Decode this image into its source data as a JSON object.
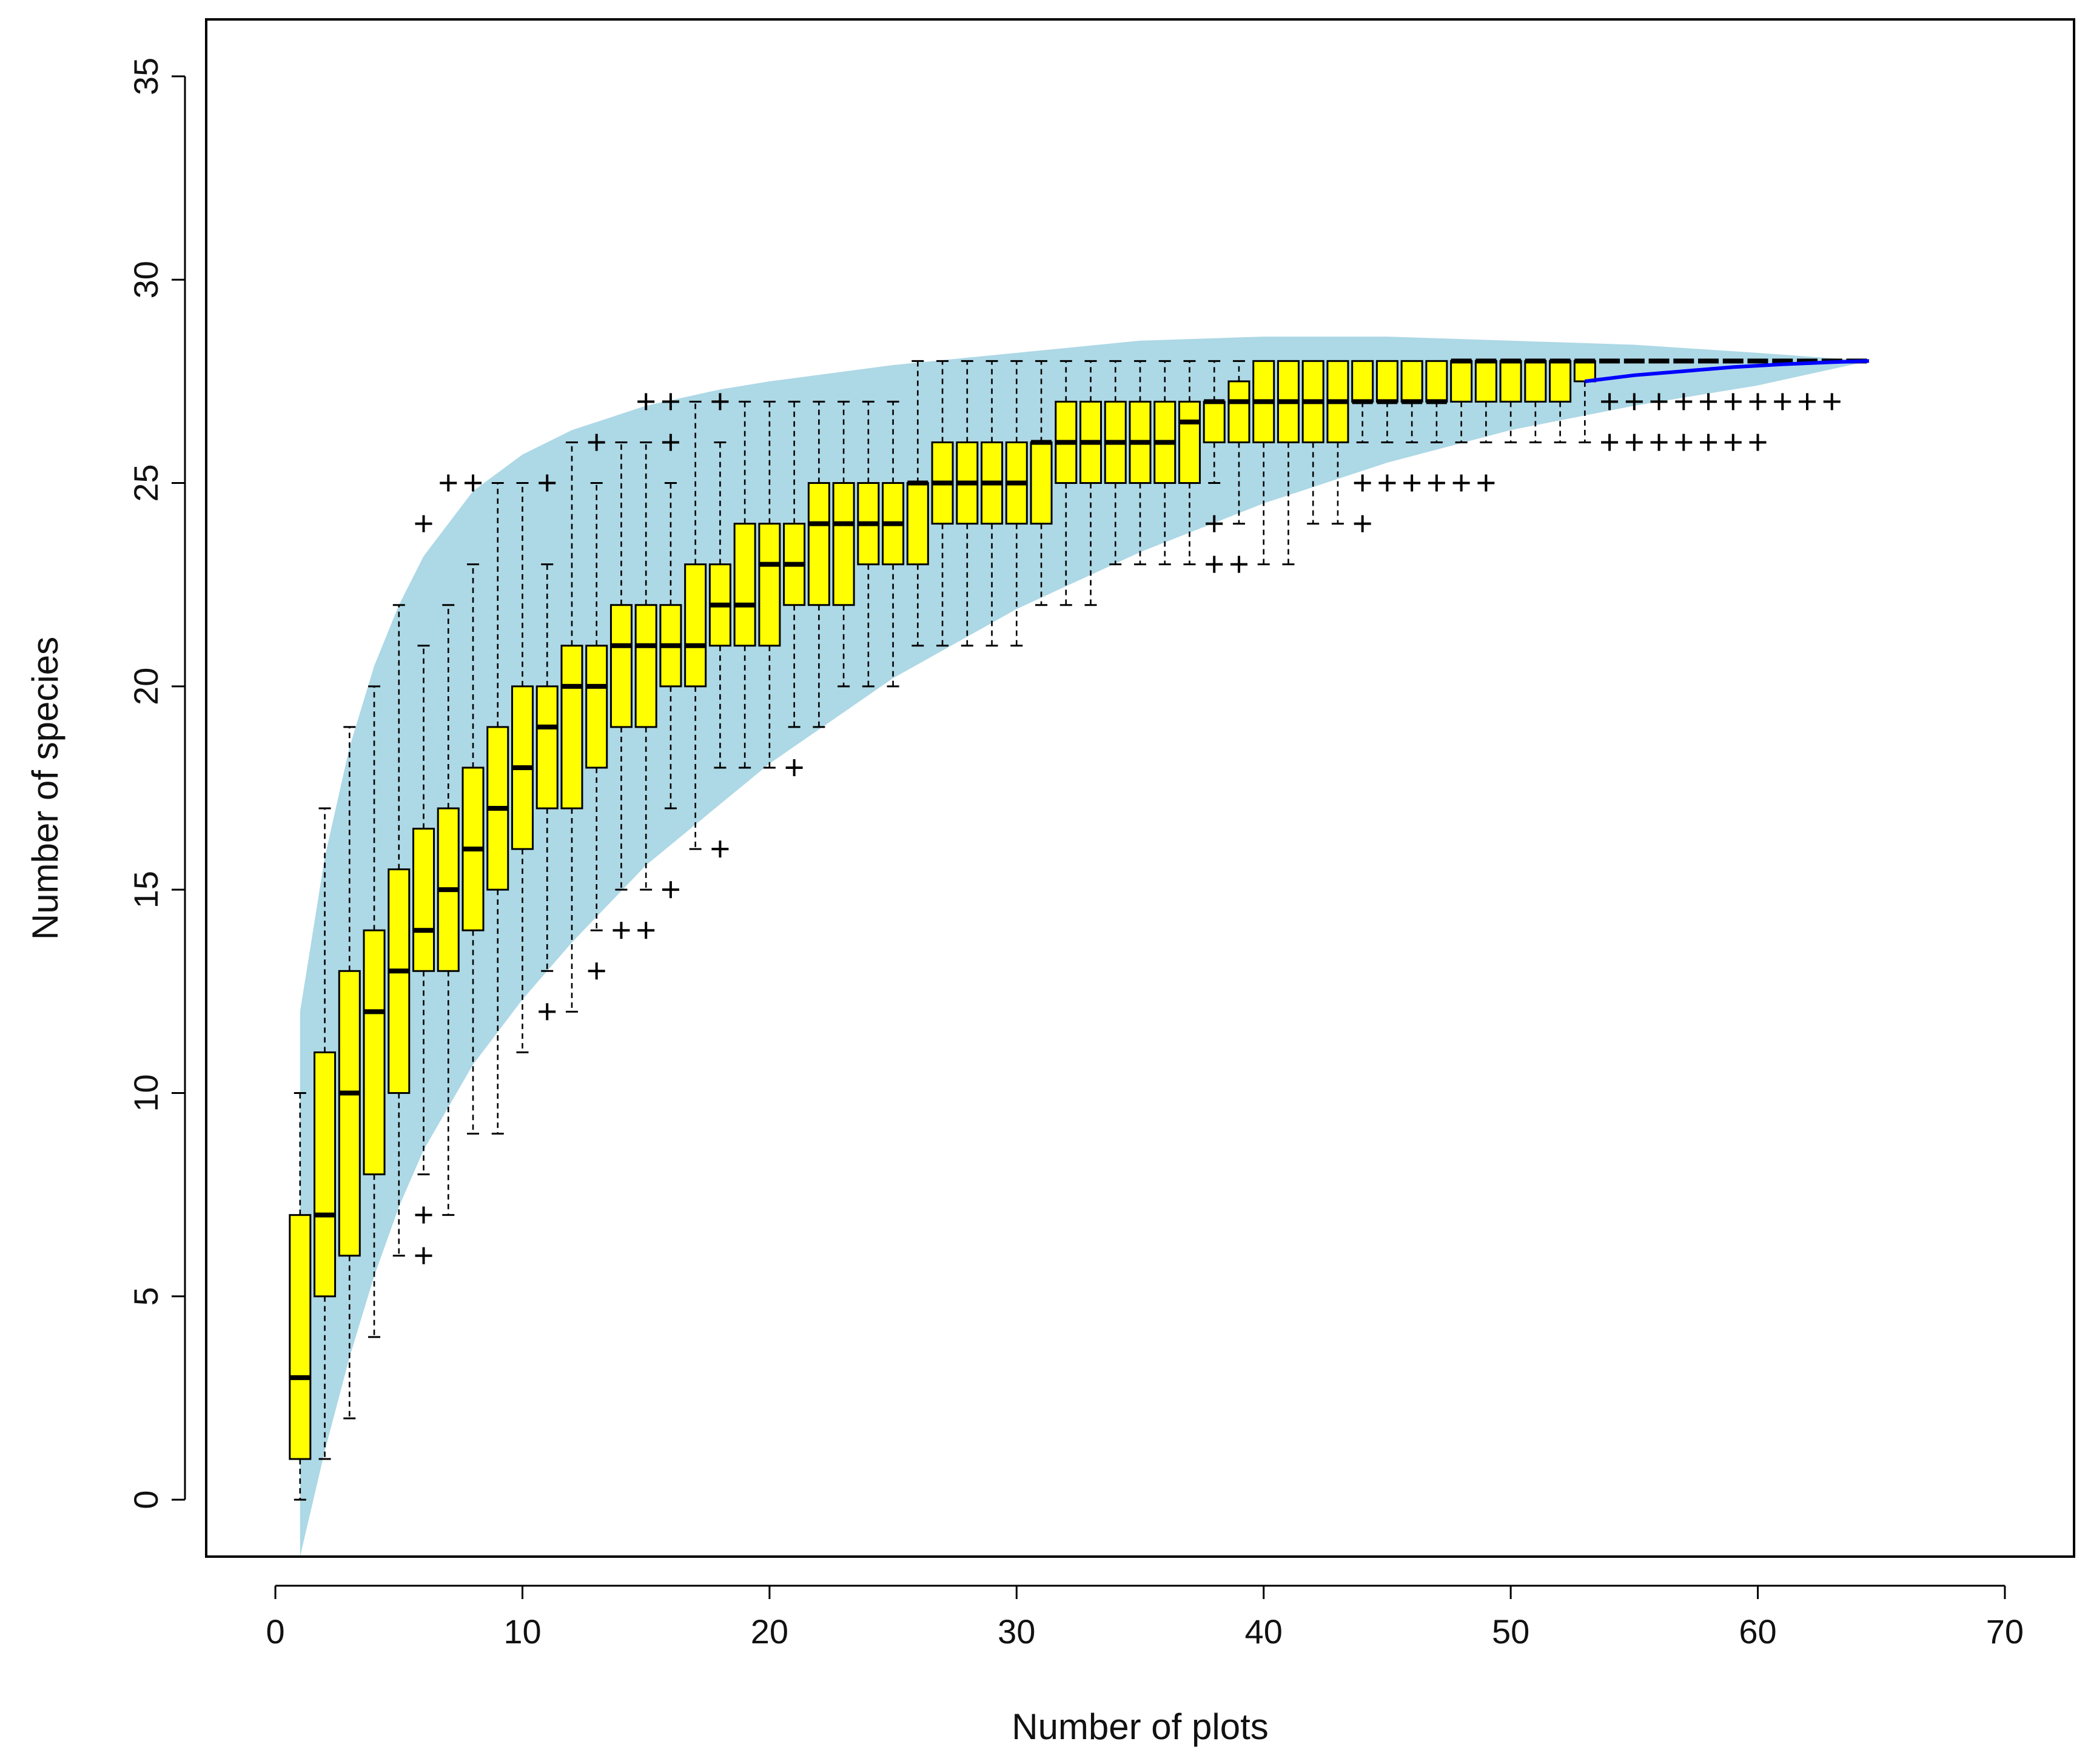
{
  "chart_data": {
    "type": "box",
    "xlabel": "Number of plots",
    "ylabel": "Number of species",
    "xlim": [
      -2.8,
      72.8
    ],
    "ylim": [
      -1.4,
      36.4
    ],
    "x_ticks": [
      0,
      10,
      20,
      30,
      40,
      50,
      60,
      70
    ],
    "y_ticks": [
      0,
      5,
      10,
      15,
      20,
      25,
      30,
      35
    ],
    "grid": false,
    "colors": {
      "box_fill": "#ffff00",
      "envelope": "#add8e6",
      "mean_line": "#0000ff",
      "ink": "#000000"
    },
    "envelope": {
      "x": [
        1,
        2,
        3,
        4,
        5,
        6,
        8,
        10,
        12,
        15,
        18,
        20,
        25,
        30,
        35,
        40,
        45,
        50,
        55,
        60,
        64.5
      ],
      "upper": [
        12,
        15.8,
        18.5,
        20.5,
        22,
        23.2,
        24.8,
        25.7,
        26.3,
        26.9,
        27.3,
        27.5,
        27.9,
        28.2,
        28.5,
        28.6,
        28.6,
        28.5,
        28.4,
        28.2,
        28
      ],
      "lower": [
        -1.4,
        1.2,
        3.5,
        5.5,
        7.2,
        8.6,
        10.7,
        12.3,
        13.7,
        15.6,
        17.1,
        18.1,
        20.2,
        21.9,
        23.3,
        24.5,
        25.5,
        26.3,
        26.9,
        27.4,
        28
      ]
    },
    "mean_curve": {
      "x": [
        53,
        55,
        57,
        59,
        61,
        63,
        64.5
      ],
      "y": [
        27.5,
        27.65,
        27.75,
        27.85,
        27.92,
        27.97,
        28
      ]
    },
    "boxes": [
      {
        "x": 1,
        "whisker_low": 0,
        "q1": 1,
        "median": 3,
        "q3": 7,
        "whisker_high": 10,
        "outliers": []
      },
      {
        "x": 2,
        "whisker_low": 1,
        "q1": 5,
        "median": 7,
        "q3": 11,
        "whisker_high": 17,
        "outliers": []
      },
      {
        "x": 3,
        "whisker_low": 2,
        "q1": 6,
        "median": 10,
        "q3": 13,
        "whisker_high": 19,
        "outliers": []
      },
      {
        "x": 4,
        "whisker_low": 4,
        "q1": 8,
        "median": 12,
        "q3": 14,
        "whisker_high": 20,
        "outliers": []
      },
      {
        "x": 5,
        "whisker_low": 6,
        "q1": 10,
        "median": 13,
        "q3": 15.5,
        "whisker_high": 22,
        "outliers": []
      },
      {
        "x": 6,
        "whisker_low": 8,
        "q1": 13,
        "median": 14,
        "q3": 16.5,
        "whisker_high": 21,
        "outliers": [
          24,
          7,
          6
        ]
      },
      {
        "x": 7,
        "whisker_low": 7,
        "q1": 13,
        "median": 15,
        "q3": 17,
        "whisker_high": 22,
        "outliers": [
          25
        ]
      },
      {
        "x": 8,
        "whisker_low": 9,
        "q1": 14,
        "median": 16,
        "q3": 18,
        "whisker_high": 23,
        "outliers": [
          25
        ]
      },
      {
        "x": 9,
        "whisker_low": 9,
        "q1": 15,
        "median": 17,
        "q3": 19,
        "whisker_high": 25,
        "outliers": []
      },
      {
        "x": 10,
        "whisker_low": 11,
        "q1": 16,
        "median": 18,
        "q3": 20,
        "whisker_high": 25,
        "outliers": []
      },
      {
        "x": 11,
        "whisker_low": 13,
        "q1": 17,
        "median": 19,
        "q3": 20,
        "whisker_high": 23,
        "outliers": [
          25,
          12
        ]
      },
      {
        "x": 12,
        "whisker_low": 12,
        "q1": 17,
        "median": 20,
        "q3": 21,
        "whisker_high": 26,
        "outliers": []
      },
      {
        "x": 13,
        "whisker_low": 14,
        "q1": 18,
        "median": 20,
        "q3": 21,
        "whisker_high": 25,
        "outliers": [
          26,
          13
        ]
      },
      {
        "x": 14,
        "whisker_low": 15,
        "q1": 19,
        "median": 21,
        "q3": 22,
        "whisker_high": 26,
        "outliers": [
          14
        ]
      },
      {
        "x": 15,
        "whisker_low": 15,
        "q1": 19,
        "median": 21,
        "q3": 22,
        "whisker_high": 26,
        "outliers": [
          27,
          14
        ]
      },
      {
        "x": 16,
        "whisker_low": 17,
        "q1": 20,
        "median": 21,
        "q3": 22,
        "whisker_high": 25,
        "outliers": [
          27,
          26,
          15
        ]
      },
      {
        "x": 17,
        "whisker_low": 16,
        "q1": 20,
        "median": 21,
        "q3": 23,
        "whisker_high": 27,
        "outliers": []
      },
      {
        "x": 18,
        "whisker_low": 18,
        "q1": 21,
        "median": 22,
        "q3": 23,
        "whisker_high": 26,
        "outliers": [
          27,
          16
        ]
      },
      {
        "x": 19,
        "whisker_low": 18,
        "q1": 21,
        "median": 22,
        "q3": 24,
        "whisker_high": 27,
        "outliers": []
      },
      {
        "x": 20,
        "whisker_low": 18,
        "q1": 21,
        "median": 23,
        "q3": 24,
        "whisker_high": 27,
        "outliers": []
      },
      {
        "x": 21,
        "whisker_low": 19,
        "q1": 22,
        "median": 23,
        "q3": 24,
        "whisker_high": 27,
        "outliers": [
          18
        ]
      },
      {
        "x": 22,
        "whisker_low": 19,
        "q1": 22,
        "median": 24,
        "q3": 25,
        "whisker_high": 27,
        "outliers": []
      },
      {
        "x": 23,
        "whisker_low": 20,
        "q1": 22,
        "median": 24,
        "q3": 25,
        "whisker_high": 27,
        "outliers": []
      },
      {
        "x": 24,
        "whisker_low": 20,
        "q1": 23,
        "median": 24,
        "q3": 25,
        "whisker_high": 27,
        "outliers": []
      },
      {
        "x": 25,
        "whisker_low": 20,
        "q1": 23,
        "median": 24,
        "q3": 25,
        "whisker_high": 27,
        "outliers": []
      },
      {
        "x": 26,
        "whisker_low": 21,
        "q1": 23,
        "median": 25,
        "q3": 25,
        "whisker_high": 28,
        "outliers": []
      },
      {
        "x": 27,
        "whisker_low": 21,
        "q1": 24,
        "median": 25,
        "q3": 26,
        "whisker_high": 28,
        "outliers": []
      },
      {
        "x": 28,
        "whisker_low": 21,
        "q1": 24,
        "median": 25,
        "q3": 26,
        "whisker_high": 28,
        "outliers": []
      },
      {
        "x": 29,
        "whisker_low": 21,
        "q1": 24,
        "median": 25,
        "q3": 26,
        "whisker_high": 28,
        "outliers": []
      },
      {
        "x": 30,
        "whisker_low": 21,
        "q1": 24,
        "median": 25,
        "q3": 26,
        "whisker_high": 28,
        "outliers": []
      },
      {
        "x": 31,
        "whisker_low": 22,
        "q1": 24,
        "median": 26,
        "q3": 26,
        "whisker_high": 28,
        "outliers": []
      },
      {
        "x": 32,
        "whisker_low": 22,
        "q1": 25,
        "median": 26,
        "q3": 27,
        "whisker_high": 28,
        "outliers": []
      },
      {
        "x": 33,
        "whisker_low": 22,
        "q1": 25,
        "median": 26,
        "q3": 27,
        "whisker_high": 28,
        "outliers": []
      },
      {
        "x": 34,
        "whisker_low": 23,
        "q1": 25,
        "median": 26,
        "q3": 27,
        "whisker_high": 28,
        "outliers": []
      },
      {
        "x": 35,
        "whisker_low": 23,
        "q1": 25,
        "median": 26,
        "q3": 27,
        "whisker_high": 28,
        "outliers": []
      },
      {
        "x": 36,
        "whisker_low": 23,
        "q1": 25,
        "median": 26,
        "q3": 27,
        "whisker_high": 28,
        "outliers": []
      },
      {
        "x": 37,
        "whisker_low": 23,
        "q1": 25,
        "median": 26.5,
        "q3": 27,
        "whisker_high": 28,
        "outliers": []
      },
      {
        "x": 38,
        "whisker_low": 25,
        "q1": 26,
        "median": 27,
        "q3": 27,
        "whisker_high": 28,
        "outliers": [
          24,
          23
        ]
      },
      {
        "x": 39,
        "whisker_low": 24,
        "q1": 26,
        "median": 27,
        "q3": 27.5,
        "whisker_high": 28,
        "outliers": [
          23
        ]
      },
      {
        "x": 40,
        "whisker_low": 23,
        "q1": 26,
        "median": 27,
        "q3": 28,
        "whisker_high": 28,
        "outliers": []
      },
      {
        "x": 41,
        "whisker_low": 23,
        "q1": 26,
        "median": 27,
        "q3": 28,
        "whisker_high": 28,
        "outliers": []
      },
      {
        "x": 42,
        "whisker_low": 24,
        "q1": 26,
        "median": 27,
        "q3": 28,
        "whisker_high": 28,
        "outliers": []
      },
      {
        "x": 43,
        "whisker_low": 24,
        "q1": 26,
        "median": 27,
        "q3": 28,
        "whisker_high": 28,
        "outliers": []
      },
      {
        "x": 44,
        "whisker_low": 26,
        "q1": 27,
        "median": 27,
        "q3": 28,
        "whisker_high": 28,
        "outliers": [
          25,
          24
        ]
      },
      {
        "x": 45,
        "whisker_low": 26,
        "q1": 27,
        "median": 27,
        "q3": 28,
        "whisker_high": 28,
        "outliers": [
          25
        ]
      },
      {
        "x": 46,
        "whisker_low": 26,
        "q1": 27,
        "median": 27,
        "q3": 28,
        "whisker_high": 28,
        "outliers": [
          25
        ]
      },
      {
        "x": 47,
        "whisker_low": 26,
        "q1": 27,
        "median": 27,
        "q3": 28,
        "whisker_high": 28,
        "outliers": [
          25
        ]
      },
      {
        "x": 48,
        "whisker_low": 26,
        "q1": 27,
        "median": 28,
        "q3": 28,
        "whisker_high": 28,
        "outliers": [
          25
        ]
      },
      {
        "x": 49,
        "whisker_low": 26,
        "q1": 27,
        "median": 28,
        "q3": 28,
        "whisker_high": 28,
        "outliers": [
          25
        ]
      },
      {
        "x": 50,
        "whisker_low": 26,
        "q1": 27,
        "median": 28,
        "q3": 28,
        "whisker_high": 28,
        "outliers": []
      },
      {
        "x": 51,
        "whisker_low": 26,
        "q1": 27,
        "median": 28,
        "q3": 28,
        "whisker_high": 28,
        "outliers": []
      },
      {
        "x": 52,
        "whisker_low": 26,
        "q1": 27,
        "median": 28,
        "q3": 28,
        "whisker_high": 28,
        "outliers": []
      },
      {
        "x": 53,
        "whisker_low": 26,
        "q1": 27.5,
        "median": 28,
        "q3": 28,
        "whisker_high": 28,
        "outliers": []
      },
      {
        "x": 54,
        "whisker_low": 28,
        "q1": 28,
        "median": 28,
        "q3": 28,
        "whisker_high": 28,
        "outliers": [
          27,
          26
        ]
      },
      {
        "x": 55,
        "whisker_low": 28,
        "q1": 28,
        "median": 28,
        "q3": 28,
        "whisker_high": 28,
        "outliers": [
          27,
          26
        ]
      },
      {
        "x": 56,
        "whisker_low": 28,
        "q1": 28,
        "median": 28,
        "q3": 28,
        "whisker_high": 28,
        "outliers": [
          27,
          26
        ]
      },
      {
        "x": 57,
        "whisker_low": 28,
        "q1": 28,
        "median": 28,
        "q3": 28,
        "whisker_high": 28,
        "outliers": [
          27,
          26
        ]
      },
      {
        "x": 58,
        "whisker_low": 28,
        "q1": 28,
        "median": 28,
        "q3": 28,
        "whisker_high": 28,
        "outliers": [
          27,
          26
        ]
      },
      {
        "x": 59,
        "whisker_low": 28,
        "q1": 28,
        "median": 28,
        "q3": 28,
        "whisker_high": 28,
        "outliers": [
          27,
          26
        ]
      },
      {
        "x": 60,
        "whisker_low": 28,
        "q1": 28,
        "median": 28,
        "q3": 28,
        "whisker_high": 28,
        "outliers": [
          27,
          26
        ]
      },
      {
        "x": 61,
        "whisker_low": 28,
        "q1": 28,
        "median": 28,
        "q3": 28,
        "whisker_high": 28,
        "outliers": [
          27
        ]
      },
      {
        "x": 62,
        "whisker_low": 28,
        "q1": 28,
        "median": 28,
        "q3": 28,
        "whisker_high": 28,
        "outliers": [
          27
        ]
      },
      {
        "x": 63,
        "whisker_low": 28,
        "q1": 28,
        "median": 28,
        "q3": 28,
        "whisker_high": 28,
        "outliers": [
          27
        ]
      },
      {
        "x": 64,
        "whisker_low": 28,
        "q1": 28,
        "median": 28,
        "q3": 28,
        "whisker_high": 28,
        "outliers": []
      }
    ]
  }
}
